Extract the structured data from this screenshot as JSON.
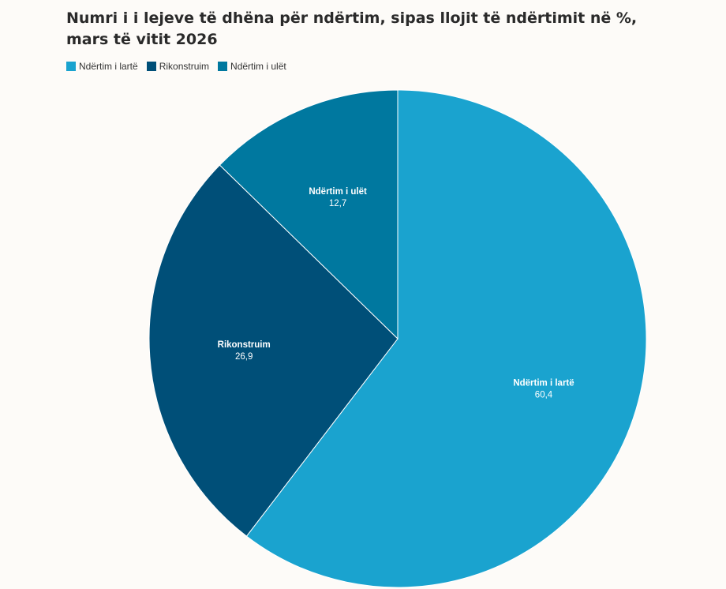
{
  "chart_data": {
    "type": "pie",
    "title": "Numri i i lejeve të dhëna për ndërtim, sipas llojit të ndërtimit në %, mars të vitit 2026",
    "legend_position": "top-left",
    "slices": [
      {
        "label": "Ndërtim i lartë",
        "value": 60.4,
        "value_text": "60,4",
        "color": "#1aa3cf"
      },
      {
        "label": "Rikonstruim",
        "value": 26.9,
        "value_text": "26,9",
        "color": "#004f78"
      },
      {
        "label": "Ndërtim i ulët",
        "value": 12.7,
        "value_text": "12,7",
        "color": "#00789f"
      }
    ]
  }
}
